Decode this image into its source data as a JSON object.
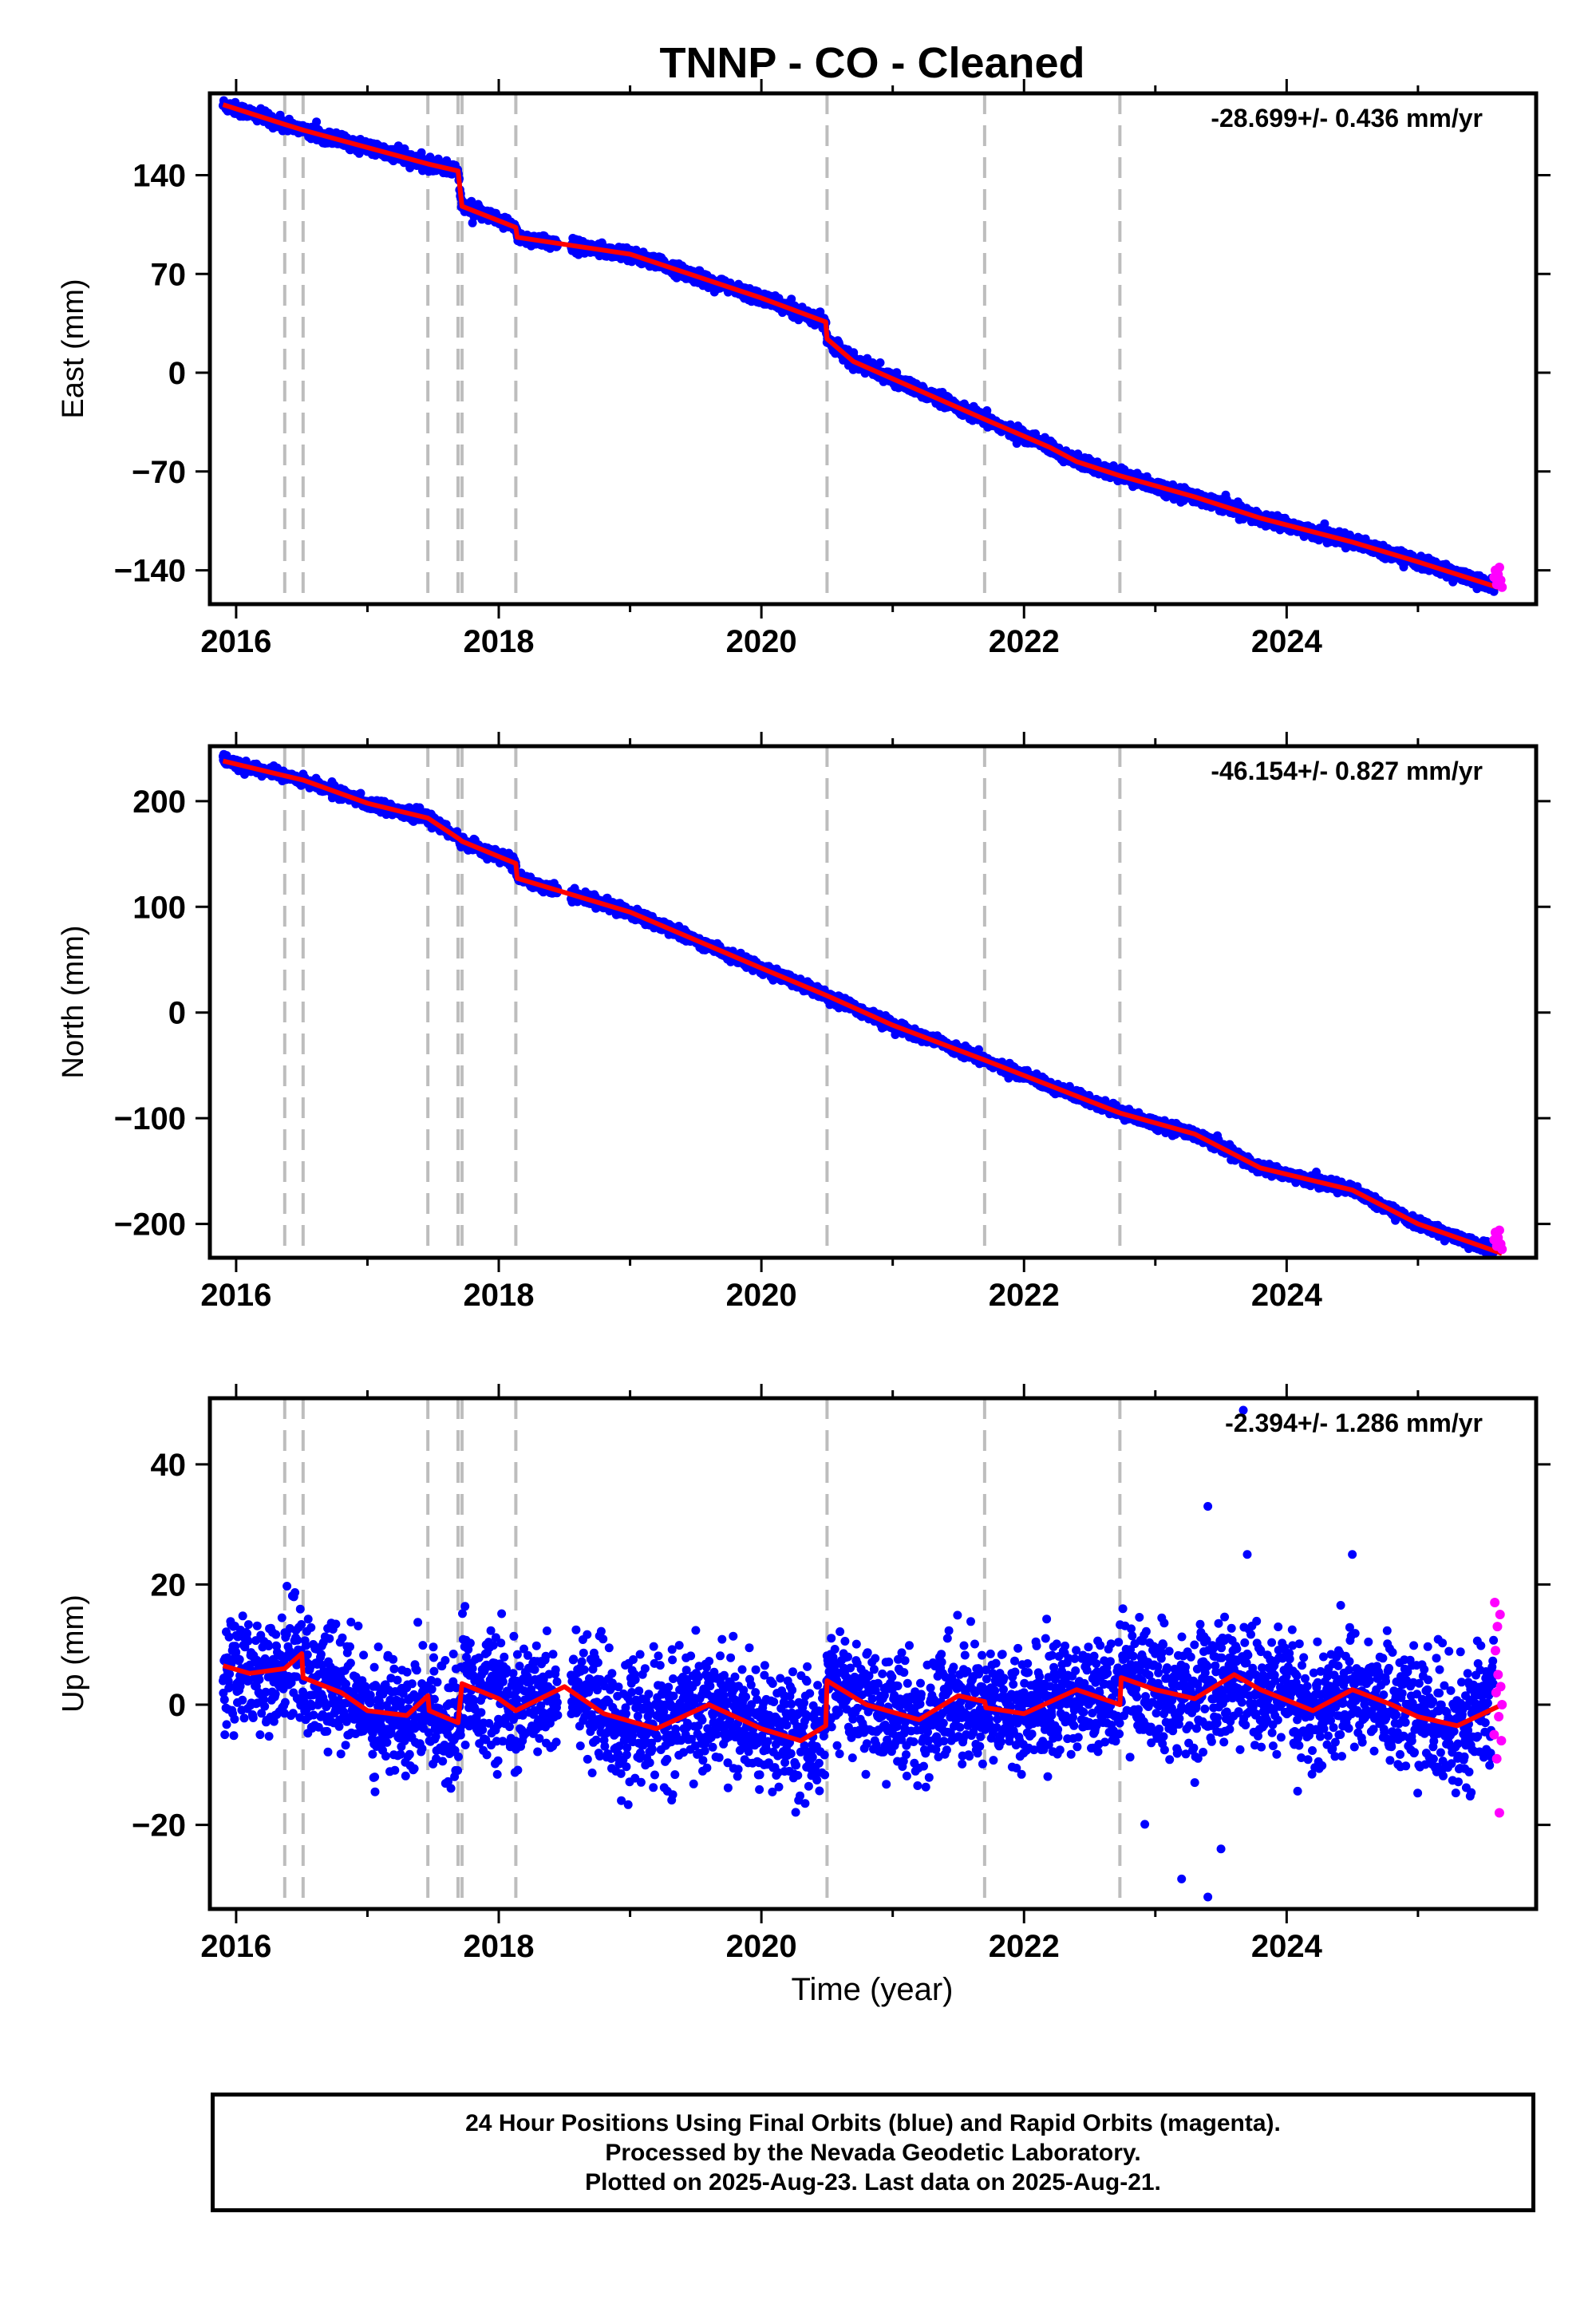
{
  "colors": {
    "final": "#0000ff",
    "rapid": "#ff00ff",
    "model": "#ff0000",
    "breaks": "#bdbdbd"
  },
  "footer": {
    "line1": "24 Hour Positions Using Final Orbits (blue) and Rapid Orbits (magenta).",
    "line2": "Processed by the Nevada Geodetic Laboratory.",
    "line3": "Plotted on 2025-Aug-23. Last data on 2025-Aug-21."
  },
  "chart_data": {
    "type": "scatter",
    "title": "TNNP  - CO - Cleaned",
    "xlabel": "Time (year)",
    "xlim": [
      2015.8,
      2025.9
    ],
    "xticks": [
      2016,
      2018,
      2020,
      2022,
      2024
    ],
    "last_data": 2025.64,
    "breaks": [
      2016.37,
      2016.51,
      2017.46,
      2017.69,
      2017.72,
      2018.13,
      2020.5,
      2021.7,
      2022.73
    ],
    "panels": [
      {
        "name": "east",
        "ylabel": "East (mm)",
        "rate": "-28.699+/- 0.436 mm/yr",
        "ylim": [
          -164,
          198
        ],
        "yticks": [
          -140,
          -70,
          0,
          70,
          140
        ],
        "noise": 2.2,
        "model": [
          [
            2015.9,
            190
          ],
          [
            2016.37,
            176
          ],
          [
            2016.51,
            172
          ],
          [
            2017.46,
            148
          ],
          [
            2017.69,
            143
          ],
          [
            2017.72,
            118
          ],
          [
            2018.13,
            103
          ],
          [
            2018.14,
            96
          ],
          [
            2019.0,
            84
          ],
          [
            2020.0,
            53
          ],
          [
            2020.49,
            36
          ],
          [
            2020.5,
            24
          ],
          [
            2020.7,
            8
          ],
          [
            2021.7,
            -33
          ],
          [
            2022.2,
            -53
          ],
          [
            2022.4,
            -63
          ],
          [
            2022.73,
            -73
          ],
          [
            2023.3,
            -88
          ],
          [
            2023.8,
            -103
          ],
          [
            2024.5,
            -120
          ],
          [
            2025.0,
            -134
          ],
          [
            2025.64,
            -153
          ]
        ],
        "rapid": [
          [
            2025.58,
            -145
          ],
          [
            2025.59,
            -140
          ],
          [
            2025.6,
            -150
          ],
          [
            2025.61,
            -143
          ],
          [
            2025.62,
            -138
          ],
          [
            2025.63,
            -147
          ],
          [
            2025.64,
            -152
          ]
        ]
      },
      {
        "name": "north",
        "ylabel": "North (mm)",
        "rate": "-46.154+/- 0.827 mm/yr",
        "ylim": [
          -232,
          252
        ],
        "yticks": [
          -200,
          -100,
          0,
          100,
          200
        ],
        "noise": 2.5,
        "model": [
          [
            2015.9,
            238
          ],
          [
            2016.37,
            224
          ],
          [
            2016.51,
            220
          ],
          [
            2017.0,
            198
          ],
          [
            2017.46,
            184
          ],
          [
            2017.69,
            165
          ],
          [
            2017.72,
            162
          ],
          [
            2018.13,
            141
          ],
          [
            2018.14,
            127
          ],
          [
            2019.0,
            95
          ],
          [
            2020.0,
            42
          ],
          [
            2020.5,
            16
          ],
          [
            2021.0,
            -12
          ],
          [
            2021.7,
            -45
          ],
          [
            2022.73,
            -95
          ],
          [
            2023.3,
            -115
          ],
          [
            2023.8,
            -147
          ],
          [
            2024.5,
            -168
          ],
          [
            2025.0,
            -200
          ],
          [
            2025.64,
            -228
          ]
        ],
        "rapid": [
          [
            2025.58,
            -215
          ],
          [
            2025.59,
            -208
          ],
          [
            2025.6,
            -221
          ],
          [
            2025.61,
            -213
          ],
          [
            2025.62,
            -206
          ],
          [
            2025.63,
            -219
          ],
          [
            2025.64,
            -224
          ]
        ]
      },
      {
        "name": "up",
        "ylabel": "Up (mm)",
        "rate": "-2.394+/- 1.286 mm/yr",
        "ylim": [
          -34,
          51
        ],
        "yticks": [
          -20,
          0,
          20,
          40
        ],
        "noise": 4.8,
        "model": [
          [
            2015.9,
            6.5
          ],
          [
            2016.1,
            5.2
          ],
          [
            2016.37,
            6.0
          ],
          [
            2016.5,
            8.5
          ],
          [
            2016.51,
            4.5
          ],
          [
            2016.8,
            2.0
          ],
          [
            2017.0,
            -1.0
          ],
          [
            2017.3,
            -1.8
          ],
          [
            2017.46,
            1.5
          ],
          [
            2017.47,
            -1.0
          ],
          [
            2017.69,
            -3.0
          ],
          [
            2017.72,
            3.5
          ],
          [
            2018.0,
            1.0
          ],
          [
            2018.13,
            -1.0
          ],
          [
            2018.5,
            3.0
          ],
          [
            2018.8,
            -1.5
          ],
          [
            2019.2,
            -4.0
          ],
          [
            2019.6,
            0.0
          ],
          [
            2020.0,
            -4.0
          ],
          [
            2020.3,
            -6.0
          ],
          [
            2020.49,
            -3.5
          ],
          [
            2020.5,
            4.0
          ],
          [
            2020.8,
            0.0
          ],
          [
            2021.2,
            -2.5
          ],
          [
            2021.5,
            1.5
          ],
          [
            2021.7,
            0.5
          ],
          [
            2021.71,
            -0.5
          ],
          [
            2022.0,
            -1.5
          ],
          [
            2022.4,
            2.5
          ],
          [
            2022.73,
            0.0
          ],
          [
            2022.74,
            4.5
          ],
          [
            2023.0,
            2.5
          ],
          [
            2023.3,
            1.0
          ],
          [
            2023.6,
            5.0
          ],
          [
            2023.8,
            2.5
          ],
          [
            2024.2,
            -1.0
          ],
          [
            2024.5,
            2.5
          ],
          [
            2024.8,
            0.0
          ],
          [
            2025.0,
            -2.0
          ],
          [
            2025.3,
            -3.5
          ],
          [
            2025.64,
            0.0
          ]
        ],
        "rapid": [
          [
            2025.58,
            -5
          ],
          [
            2025.585,
            17
          ],
          [
            2025.59,
            9
          ],
          [
            2025.595,
            2
          ],
          [
            2025.6,
            -9
          ],
          [
            2025.605,
            13
          ],
          [
            2025.61,
            5
          ],
          [
            2025.615,
            -2
          ],
          [
            2025.62,
            -18
          ],
          [
            2025.625,
            15
          ],
          [
            2025.63,
            3
          ],
          [
            2025.635,
            -6
          ],
          [
            2025.64,
            0
          ]
        ],
        "outliers": [
          [
            2023.67,
            49
          ],
          [
            2023.4,
            33
          ],
          [
            2023.2,
            -29
          ],
          [
            2023.4,
            -32
          ],
          [
            2023.5,
            -24
          ],
          [
            2024.5,
            25
          ],
          [
            2023.7,
            25
          ]
        ]
      }
    ]
  }
}
